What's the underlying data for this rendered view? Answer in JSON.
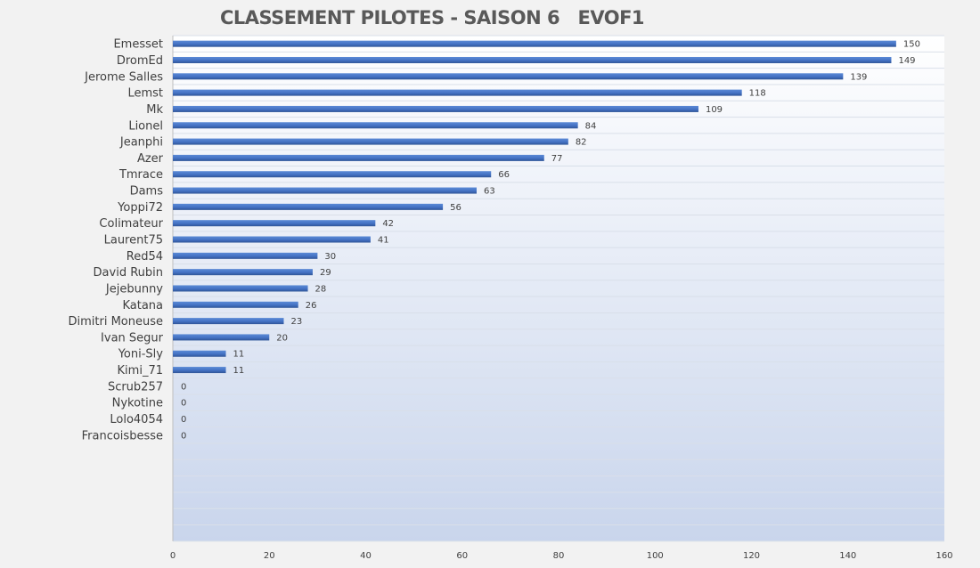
{
  "chart_data": {
    "type": "bar",
    "orientation": "horizontal",
    "title": "CLASSEMENT PILOTES - SAISON 6   EVOF1",
    "categories": [
      "Emesset",
      "DromEd",
      "Jerome Salles",
      "Lemst",
      "Mk",
      "Lionel",
      "Jeanphi",
      "Azer",
      "Tmrace",
      "Dams",
      "Yoppi72",
      "Colimateur",
      "Laurent75",
      "Red54",
      "David Rubin",
      "Jejebunny",
      "Katana",
      "Dimitri Moneuse",
      "Ivan Segur",
      "Yoni-Sly",
      "Kimi_71",
      "Scrub257",
      "Nykotine",
      "Lolo4054",
      "Francoisbesse"
    ],
    "values": [
      150,
      149,
      139,
      118,
      109,
      84,
      82,
      77,
      66,
      63,
      56,
      42,
      41,
      30,
      29,
      28,
      26,
      23,
      20,
      11,
      11,
      0,
      0,
      0,
      0
    ],
    "xlim": [
      0,
      160
    ],
    "xticks": [
      0,
      20,
      40,
      60,
      80,
      100,
      120,
      140,
      160
    ],
    "empty_rows": 6,
    "data_labels": true,
    "grid": true,
    "legend": "none",
    "colors": {
      "bar": "#4472c4",
      "bar_dark": "#2f5597",
      "plot_top": "#ffffff",
      "plot_bottom": "#c9d5ec"
    }
  }
}
